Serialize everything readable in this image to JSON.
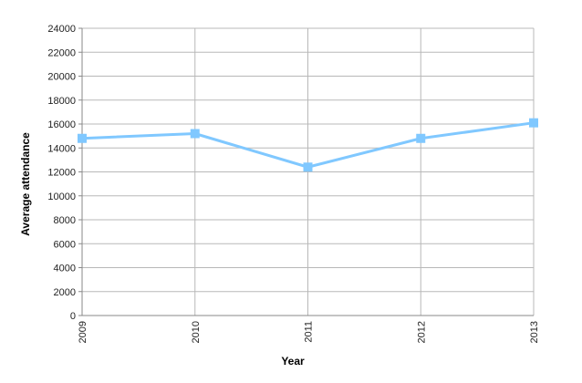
{
  "chart_data": {
    "type": "line",
    "x_label": "Year",
    "y_label": "Average attendance",
    "categories": [
      "2009",
      "2010",
      "2011",
      "2012",
      "2013"
    ],
    "series": [
      {
        "name": "Average attendance",
        "color": "#80c8ff",
        "values": [
          14800,
          15200,
          12400,
          14800,
          16100
        ]
      }
    ],
    "ylim": [
      0,
      24000
    ],
    "yticks": [
      0,
      2000,
      4000,
      6000,
      8000,
      10000,
      12000,
      14000,
      16000,
      18000,
      20000,
      22000,
      24000
    ],
    "grid": true
  }
}
